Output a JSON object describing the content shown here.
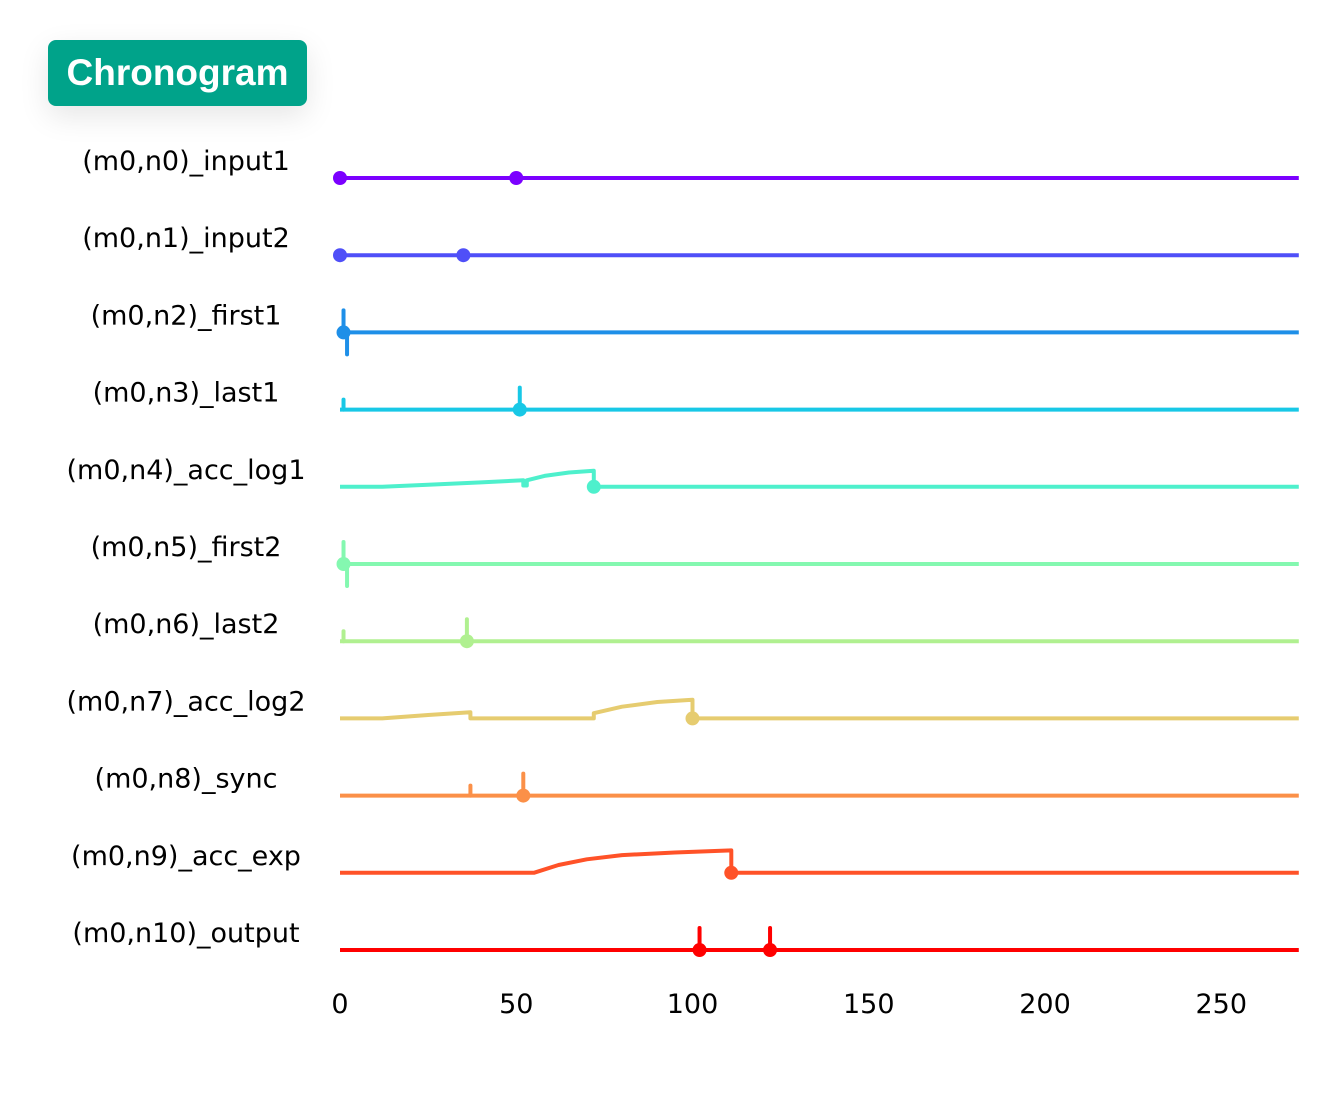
{
  "title": "Chronogram",
  "chart_data": {
    "type": "line",
    "title": "Chronogram",
    "xlabel": "",
    "ylabel": "",
    "xlim": [
      0,
      272
    ],
    "xticks": [
      0,
      50,
      100,
      150,
      200,
      250
    ],
    "xtick_labels": [
      "0",
      "50",
      "100",
      "150",
      "200",
      "250"
    ],
    "grid": false,
    "series": [
      {
        "name": "(m0,n0)_input1",
        "color": "#7b00ff",
        "trace": [
          [
            0,
            0
          ],
          [
            272,
            0
          ]
        ],
        "events": [
          0,
          50
        ],
        "spikes_up": [],
        "spikes_down": []
      },
      {
        "name": "(m0,n1)_input2",
        "color": "#4f4ff8",
        "trace": [
          [
            0,
            0
          ],
          [
            272,
            0
          ]
        ],
        "events": [
          0,
          35
        ],
        "spikes_up": [],
        "spikes_down": []
      },
      {
        "name": "(m0,n2)_first1",
        "color": "#1e8fe8",
        "trace": [
          [
            0,
            0
          ],
          [
            272,
            0
          ]
        ],
        "events": [
          1
        ],
        "spikes_up": [
          1
        ],
        "spikes_down": [
          2
        ]
      },
      {
        "name": "(m0,n3)_last1",
        "color": "#18c8e6",
        "trace": [
          [
            0,
            0
          ],
          [
            272,
            0
          ]
        ],
        "events": [
          51
        ],
        "spikes_up": [
          1,
          51
        ],
        "spikes_down": []
      },
      {
        "name": "(m0,n4)_acc_log1",
        "color": "#4ef0cc",
        "trace": [
          [
            0,
            0
          ],
          [
            12,
            0
          ],
          [
            25,
            0.08
          ],
          [
            40,
            0.17
          ],
          [
            52,
            0.25
          ],
          [
            52,
            0.05
          ],
          [
            53,
            0.05
          ],
          [
            53,
            0.25
          ],
          [
            58,
            0.42
          ],
          [
            65,
            0.55
          ],
          [
            72,
            0.62
          ],
          [
            72,
            0
          ],
          [
            272,
            0
          ]
        ],
        "events": [
          72
        ],
        "spikes_up": [],
        "spikes_down": []
      },
      {
        "name": "(m0,n5)_first2",
        "color": "#84f8b0",
        "trace": [
          [
            0,
            0
          ],
          [
            272,
            0
          ]
        ],
        "events": [
          1
        ],
        "spikes_up": [
          1
        ],
        "spikes_down": [
          2
        ]
      },
      {
        "name": "(m0,n6)_last2",
        "color": "#b0f090",
        "trace": [
          [
            0,
            0
          ],
          [
            272,
            0
          ]
        ],
        "events": [
          36
        ],
        "spikes_up": [
          1,
          36
        ],
        "spikes_down": []
      },
      {
        "name": "(m0,n7)_acc_log2",
        "color": "#e6cc70",
        "trace": [
          [
            0,
            0
          ],
          [
            12,
            0
          ],
          [
            25,
            0.13
          ],
          [
            37,
            0.24
          ],
          [
            37,
            0
          ],
          [
            72,
            0
          ],
          [
            72,
            0.2
          ],
          [
            80,
            0.45
          ],
          [
            90,
            0.63
          ],
          [
            100,
            0.72
          ],
          [
            100,
            0
          ],
          [
            272,
            0
          ]
        ],
        "events": [
          100
        ],
        "spikes_up": [],
        "spikes_down": []
      },
      {
        "name": "(m0,n8)_sync",
        "color": "#fb9048",
        "trace": [
          [
            0,
            0
          ],
          [
            272,
            0
          ]
        ],
        "events": [
          52
        ],
        "spikes_up": [
          37,
          52
        ],
        "spikes_down": []
      },
      {
        "name": "(m0,n9)_acc_exp",
        "color": "#ff5228",
        "trace": [
          [
            0,
            0
          ],
          [
            55,
            0
          ],
          [
            62,
            0.3
          ],
          [
            70,
            0.52
          ],
          [
            80,
            0.68
          ],
          [
            95,
            0.78
          ],
          [
            111,
            0.86
          ],
          [
            111,
            0
          ],
          [
            272,
            0
          ]
        ],
        "events": [
          111
        ],
        "spikes_up": [],
        "spikes_down": []
      },
      {
        "name": "(m0,n10)_output",
        "color": "#ff0000",
        "trace": [
          [
            0,
            0
          ],
          [
            272,
            0
          ]
        ],
        "events": [
          102,
          122
        ],
        "spikes_up": [
          102,
          122
        ],
        "spikes_down": []
      }
    ]
  }
}
